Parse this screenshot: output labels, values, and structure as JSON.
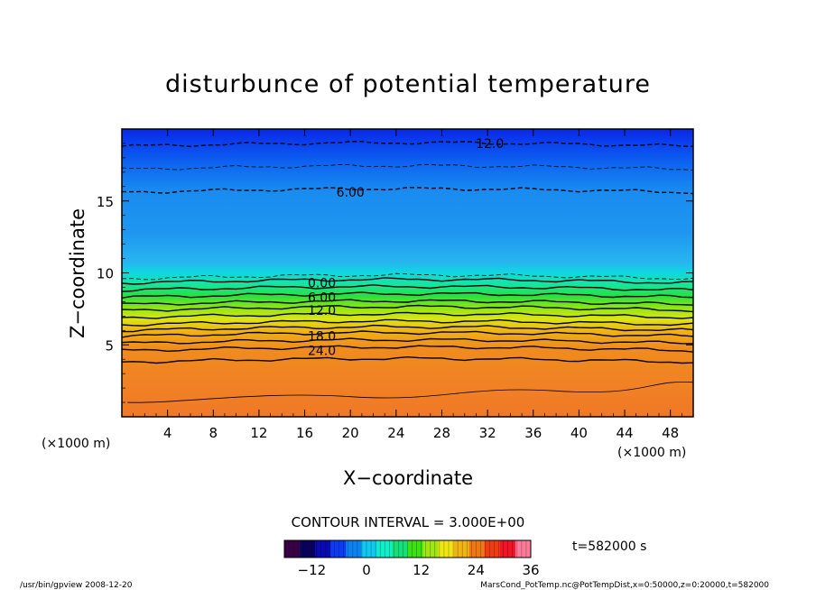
{
  "chart_data": {
    "type": "heatmap",
    "title": "disturbunce of potential temperature",
    "xlabel": "X−coordinate",
    "ylabel": "Z−coordinate",
    "x_unit": "(×1000 m)",
    "x_unit_right": "(×1000 m)",
    "xlim": [
      0,
      50
    ],
    "ylim": [
      0,
      20
    ],
    "x_ticks": [
      4,
      8,
      12,
      16,
      20,
      24,
      28,
      32,
      36,
      40,
      44,
      48
    ],
    "y_ticks": [
      5,
      10,
      15
    ],
    "contour_interval_text": "CONTOUR INTERVAL = 3.000E+00",
    "time_text": "t=582000 s",
    "colorbar": {
      "ticks": [
        -12,
        0,
        12,
        24,
        36
      ],
      "tick_labels": [
        "−12",
        "0",
        "12",
        "24",
        "36"
      ],
      "range": [
        -18,
        36
      ],
      "colors": [
        "#3a0045",
        "#08005c",
        "#0a0ab4",
        "#0a3cf0",
        "#0a82f0",
        "#10c8f0",
        "#10f0c8",
        "#14e07a",
        "#3ce014",
        "#a0e614",
        "#f0e614",
        "#f0b414",
        "#f07814",
        "#f03c14",
        "#f01428",
        "#ff7a9a"
      ]
    },
    "contour_labels": [
      {
        "text": "12.0",
        "value": -12,
        "x": 32.2,
        "z": 19.0
      },
      {
        "text": "6.00",
        "value": -6,
        "x": 20.0,
        "z": 15.6
      },
      {
        "text": "0.00",
        "value": 0,
        "x": 17.5,
        "z": 9.3
      },
      {
        "text": "6.00",
        "value": 6,
        "x": 17.5,
        "z": 8.3
      },
      {
        "text": "12.0",
        "value": 12,
        "x": 17.5,
        "z": 7.4
      },
      {
        "text": "18.0",
        "value": 18,
        "x": 17.5,
        "z": 5.6
      },
      {
        "text": "24.0",
        "value": 24,
        "x": 17.5,
        "z": 4.6
      }
    ],
    "field_bands": [
      {
        "z_from": 0,
        "z_to": 3.7,
        "value": 27
      },
      {
        "z_from": 3.7,
        "z_to": 4.5,
        "value": 25
      },
      {
        "z_from": 4.5,
        "z_to": 5.4,
        "value": 21
      },
      {
        "z_from": 5.4,
        "z_to": 6.3,
        "value": 17
      },
      {
        "z_from": 6.3,
        "z_to": 7.2,
        "value": 13
      },
      {
        "z_from": 7.2,
        "z_to": 8.1,
        "value": 9
      },
      {
        "z_from": 8.1,
        "z_to": 8.8,
        "value": 5
      },
      {
        "z_from": 8.8,
        "z_to": 9.5,
        "value": 1
      },
      {
        "z_from": 9.5,
        "z_to": 10.5,
        "value": -2
      },
      {
        "z_from": 10.5,
        "z_to": 14.5,
        "value": -4
      },
      {
        "z_from": 14.5,
        "z_to": 17.2,
        "value": -7
      },
      {
        "z_from": 17.2,
        "z_to": 18.8,
        "value": -10
      },
      {
        "z_from": 18.8,
        "z_to": 20,
        "value": -14
      }
    ]
  },
  "footer": {
    "left": "/usr/bin/gpview   2008-12-20",
    "right": "MarsCond_PotTemp.nc@PotTempDist,x=0:50000,z=0:20000,t=582000"
  }
}
